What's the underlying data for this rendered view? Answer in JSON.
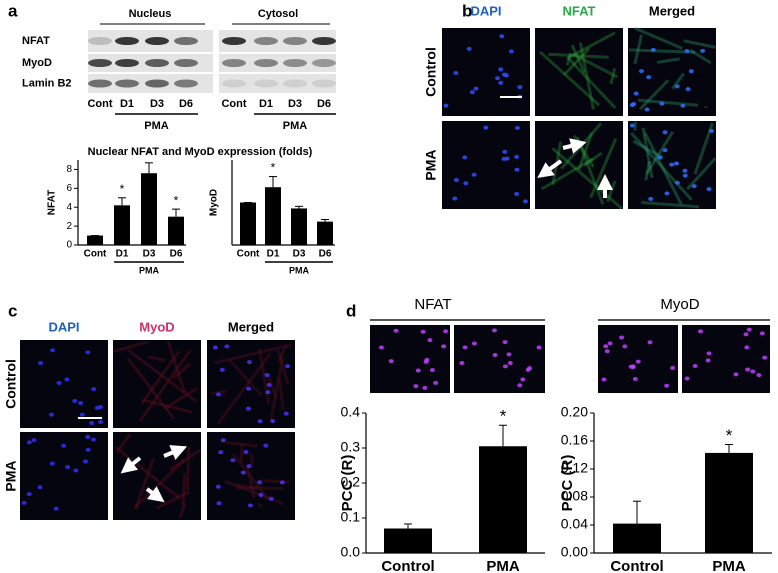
{
  "figure": {
    "a": {
      "label": "a",
      "nucleus": "Nucleus",
      "cytosol": "Cytosol",
      "rows": [
        "NFAT",
        "MyoD",
        "Lamin B2"
      ],
      "lanes_nucleus": [
        "Cont",
        "D1",
        "D3",
        "D6"
      ],
      "lanes_cytosol": [
        "Cont",
        "D1",
        "D3",
        "D6"
      ],
      "pma_nucleus": "PMA",
      "pma_cytosol": "PMA"
    },
    "b": {
      "label": "b",
      "columns": [
        "DAPI",
        "NFAT",
        "Merged"
      ],
      "rows": [
        "Control",
        "PMA"
      ]
    },
    "c": {
      "label": "c",
      "columns": [
        "DAPI",
        "MyoD",
        "Merged"
      ],
      "rows": [
        "Control",
        "PMA"
      ]
    },
    "d": {
      "label": "d",
      "headers": [
        "NFAT",
        "MyoD"
      ]
    }
  },
  "chart_data": [
    {
      "type": "bar",
      "title": "Nuclear NFAT and MyoD expression (folds)",
      "y_label": "NFAT",
      "categories": [
        "Cont",
        "D1",
        "D3",
        "D6"
      ],
      "values": [
        1,
        4.2,
        7.6,
        3
      ],
      "errors": [
        0,
        0.8,
        1.1,
        0.8
      ],
      "significance": [
        null,
        "*",
        "*",
        "*"
      ],
      "group_label": "PMA",
      "color": "#000000",
      "ylim": [
        0,
        9
      ],
      "yticks": [
        0,
        2,
        4,
        6,
        8
      ]
    },
    {
      "type": "bar",
      "y_label": "MyoD",
      "categories": [
        "Cont",
        "D1",
        "D3",
        "D6"
      ],
      "values": [
        1,
        1.36,
        0.86,
        0.55
      ],
      "errors": [
        0,
        0.25,
        0.05,
        0.05
      ],
      "significance": [
        null,
        "*",
        null,
        null
      ],
      "group_label": "PMA",
      "color": "#000000",
      "ylim": [
        0,
        2
      ]
    },
    {
      "type": "bar",
      "y_label": "PCC (R)",
      "categories": [
        "Control",
        "PMA"
      ],
      "values": [
        0.07,
        0.305
      ],
      "errors": [
        0.013,
        0.06
      ],
      "significance": [
        null,
        "*"
      ],
      "color": "#000000",
      "ylim": [
        0,
        0.4
      ],
      "yticks": [
        {
          "value": 0,
          "label": "0.0"
        },
        0.1,
        0.2,
        0.3,
        0.4
      ]
    },
    {
      "type": "bar",
      "y_label": "PCC (R)",
      "categories": [
        "Control",
        "PMA"
      ],
      "values": [
        0.042,
        0.143
      ],
      "errors": [
        0.032,
        0.012
      ],
      "significance": [
        null,
        "*"
      ],
      "color": "#000000",
      "ylim": [
        0,
        0.2
      ],
      "yticks": [
        {
          "value": 0,
          "label": "0.00"
        },
        {
          "value": 0.04,
          "label": "0.04"
        },
        {
          "value": 0.08,
          "label": "0.08"
        },
        {
          "value": 0.12,
          "label": "0.12"
        },
        {
          "value": 0.16,
          "label": "0.16"
        },
        {
          "value": 0.2,
          "label": "0.20"
        }
      ]
    }
  ]
}
